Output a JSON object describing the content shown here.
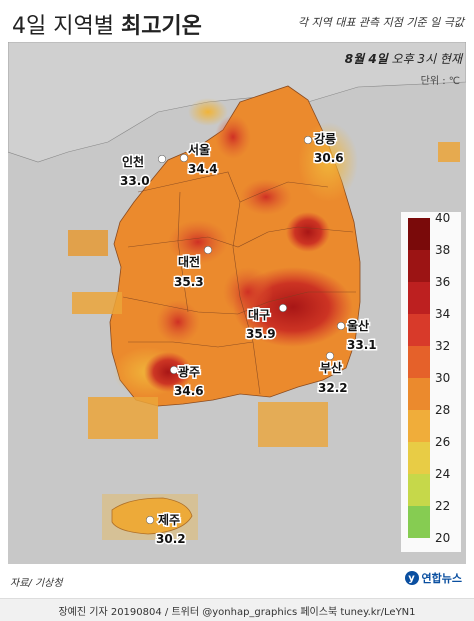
{
  "header": {
    "title_normal": "4일 지역별 ",
    "title_bold": "최고기온",
    "subtitle": "각 지역 대표 관측 지점 기준 일 극값",
    "date": "8월 4일",
    "time": " 오후 3시 현재",
    "unit": "단위 : ℃"
  },
  "cities": [
    {
      "name": "서울",
      "value": "34.4"
    },
    {
      "name": "인천",
      "value": "33.0"
    },
    {
      "name": "강릉",
      "value": "30.6"
    },
    {
      "name": "대전",
      "value": "35.3"
    },
    {
      "name": "대구",
      "value": "35.9"
    },
    {
      "name": "울산",
      "value": "33.1"
    },
    {
      "name": "부산",
      "value": "32.2"
    },
    {
      "name": "광주",
      "value": "34.6"
    },
    {
      "name": "제주",
      "value": "30.2"
    }
  ],
  "legend": {
    "ticks": [
      "40",
      "38",
      "36",
      "34",
      "32",
      "30",
      "28",
      "26",
      "24",
      "22",
      "20"
    ],
    "colors": [
      "#7a0a0a",
      "#9c1414",
      "#bd2020",
      "#d83a2a",
      "#e5612a",
      "#eb8a2d",
      "#f0ad3a",
      "#e8cc45",
      "#c6d84a",
      "#86cc52",
      "#4fbb55"
    ]
  },
  "colors": {
    "map_background": "#c8c8c8",
    "land_base": "#eb8a2d",
    "accent": "#0a4fa0"
  },
  "source": "자료/ 기상청",
  "logo": "연합뉴스",
  "footer": "장예진 기자 20190804 / 트위터 @yonhap_graphics  페이스북 tuney.kr/LeYN1"
}
